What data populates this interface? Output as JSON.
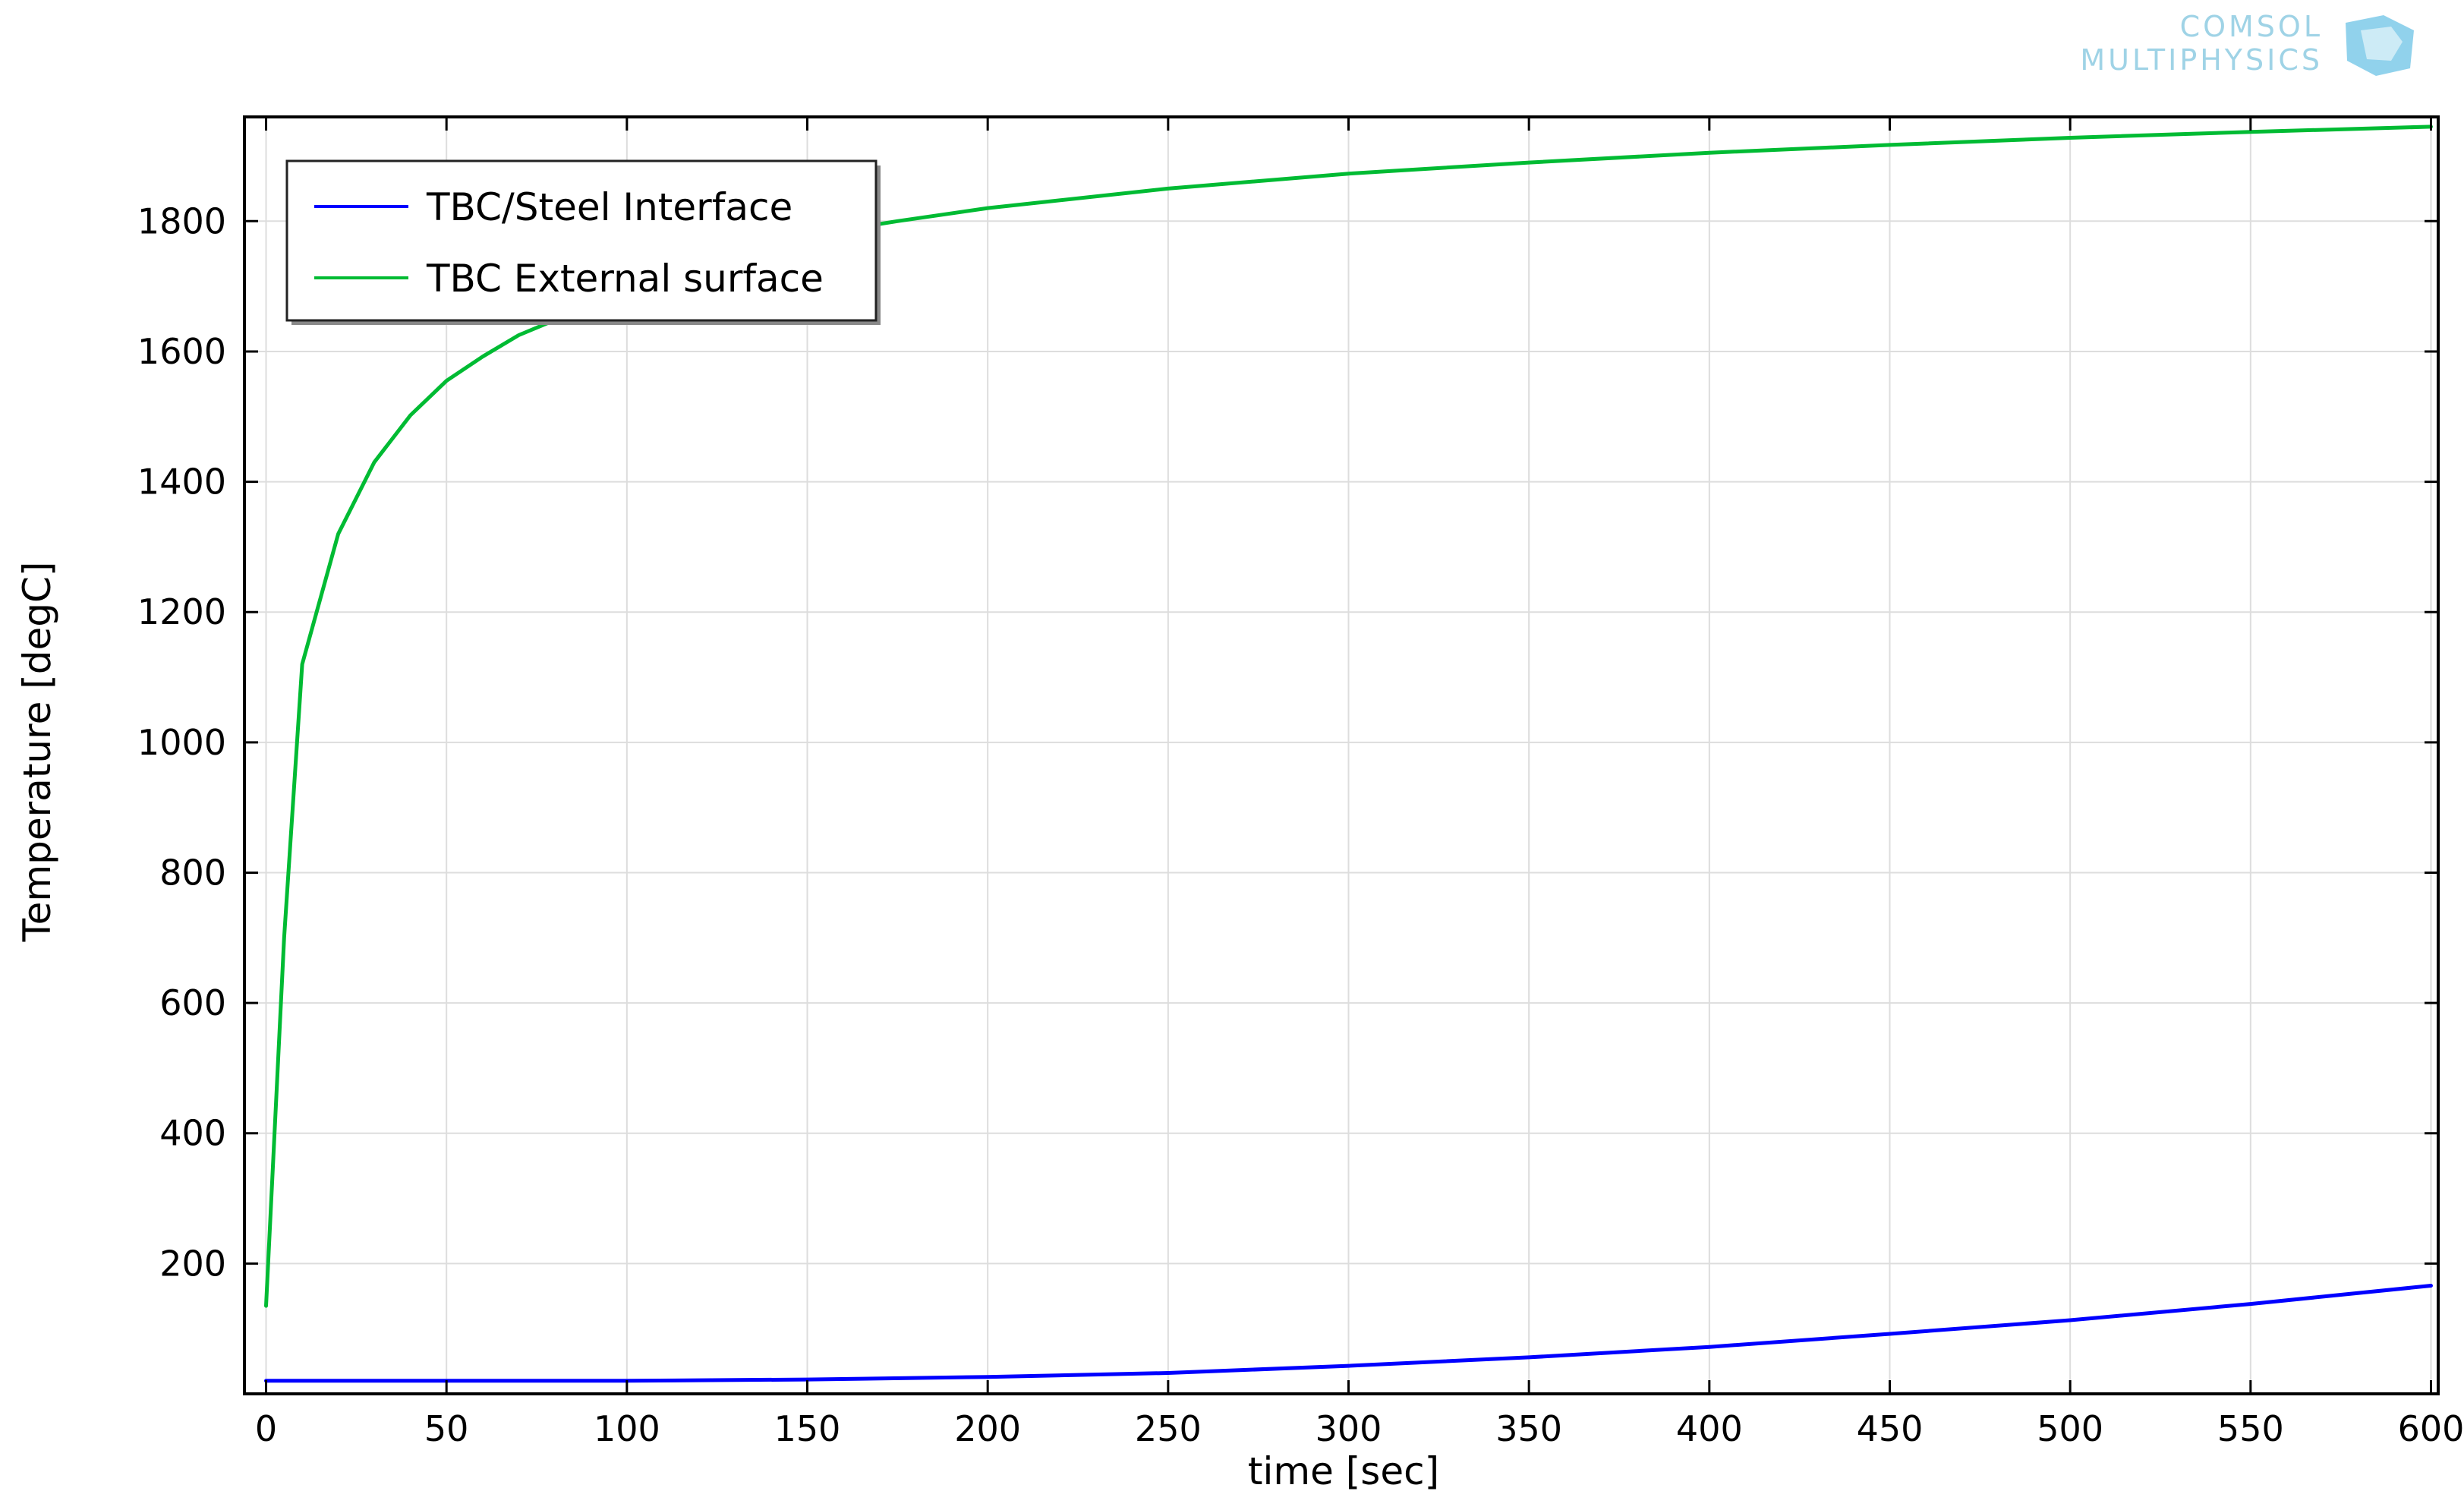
{
  "logo": {
    "line1": "COMSOL",
    "line2": "MULTIPHYSICS"
  },
  "chart_data": {
    "type": "line",
    "xlabel": "time [sec]",
    "ylabel": "Temperature [degC]",
    "xlim": [
      -6,
      602
    ],
    "ylim": [
      0,
      1960
    ],
    "xticks": [
      0,
      50,
      100,
      150,
      200,
      250,
      300,
      350,
      400,
      450,
      500,
      550,
      600
    ],
    "yticks": [
      200,
      400,
      600,
      800,
      1000,
      1200,
      1400,
      1600,
      1800
    ],
    "grid": true,
    "legend_position": "top-left",
    "series": [
      {
        "name": "TBC/Steel Interface",
        "color": "#0000ff",
        "x": [
          0,
          50,
          100,
          150,
          200,
          250,
          300,
          350,
          400,
          450,
          500,
          550,
          600
        ],
        "y": [
          20,
          20,
          20,
          22,
          26,
          32,
          43,
          56,
          72,
          92,
          113,
          138,
          166
        ]
      },
      {
        "name": "TBC External surface",
        "color": "#00bb33",
        "x": [
          0,
          5,
          10,
          20,
          30,
          40,
          50,
          60,
          70,
          80,
          100,
          125,
          150,
          175,
          200,
          250,
          300,
          350,
          400,
          450,
          500,
          550,
          600
        ],
        "y": [
          135,
          700,
          1120,
          1320,
          1430,
          1502,
          1555,
          1592,
          1625,
          1648,
          1695,
          1745,
          1778,
          1800,
          1820,
          1850,
          1873,
          1890,
          1905,
          1917,
          1928,
          1937,
          1945
        ]
      }
    ]
  }
}
